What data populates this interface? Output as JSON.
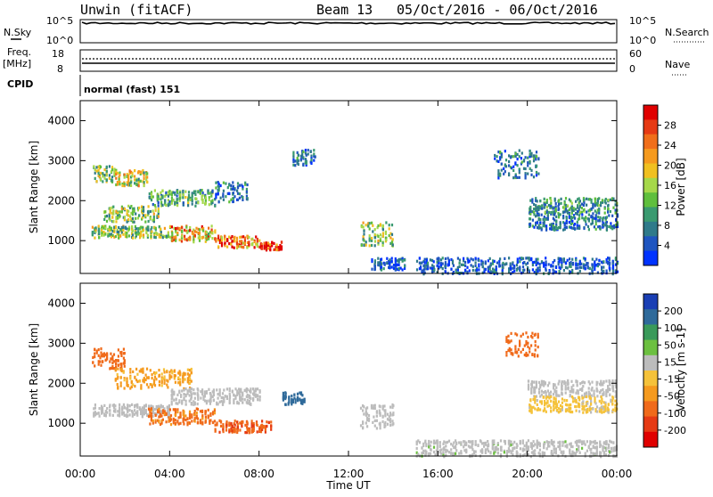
{
  "header": {
    "title": "Unwin (fitACF)",
    "beam": "Beam 13",
    "date_range": "05/Oct/2016 - 06/Oct/2016"
  },
  "top_panels": {
    "nsky": {
      "left_label": "N.Sky",
      "right_label": "N.Search",
      "left_ticks": [
        "10^5",
        "10^0"
      ],
      "right_ticks": [
        "10^5",
        "10^0"
      ]
    },
    "freq": {
      "left_label_line1": "Freq.",
      "left_label_line2": "[MHz]",
      "right_label": "Nave",
      "left_ticks": [
        "18",
        "8"
      ],
      "right_ticks": [
        "60",
        "0"
      ]
    },
    "cpid": {
      "label": "CPID",
      "text": "normal (fast) 151"
    }
  },
  "x_axis": {
    "label": "Time UT",
    "ticks": [
      "00:00",
      "04:00",
      "08:00",
      "12:00",
      "16:00",
      "20:00",
      "00:00"
    ]
  },
  "chart_data": [
    {
      "type": "heatmap",
      "ylabel": "Slant Range [km]",
      "xlabel": "Time UT",
      "xlim": [
        0,
        24
      ],
      "ylim": [
        180,
        4500
      ],
      "y_ticks": [
        1000,
        2000,
        3000,
        4000
      ],
      "colorbar": {
        "label": "Power [dB]",
        "ticks": [
          4,
          8,
          12,
          16,
          20,
          24,
          28
        ],
        "colors": [
          "#0033ff",
          "#1f55c0",
          "#2f7a8a",
          "#3a9a70",
          "#5fbf3d",
          "#a6d84a",
          "#f0c020",
          "#f59a1e",
          "#f06e1a",
          "#e63a14",
          "#e00000"
        ]
      },
      "regions": [
        {
          "t": [
            0.5,
            1.5
          ],
          "r": [
            2500,
            2900
          ],
          "level": 14
        },
        {
          "t": [
            1.5,
            3.0
          ],
          "r": [
            2400,
            2800
          ],
          "level": 16
        },
        {
          "t": [
            1.0,
            3.5
          ],
          "r": [
            1500,
            1900
          ],
          "level": 14
        },
        {
          "t": [
            3.0,
            6.0
          ],
          "r": [
            1900,
            2300
          ],
          "level": 12
        },
        {
          "t": [
            6.0,
            7.5
          ],
          "r": [
            2000,
            2500
          ],
          "level": 8
        },
        {
          "t": [
            0.5,
            4.0
          ],
          "r": [
            1100,
            1400
          ],
          "level": 14
        },
        {
          "t": [
            4.0,
            6.0
          ],
          "r": [
            1000,
            1400
          ],
          "level": 20
        },
        {
          "t": [
            6.0,
            8.0
          ],
          "r": [
            850,
            1150
          ],
          "level": 24
        },
        {
          "t": [
            8.0,
            9.0
          ],
          "r": [
            800,
            1000
          ],
          "level": 26
        },
        {
          "t": [
            9.5,
            10.5
          ],
          "r": [
            2900,
            3300
          ],
          "level": 8
        },
        {
          "t": [
            12.5,
            14.0
          ],
          "r": [
            900,
            1500
          ],
          "level": 14
        },
        {
          "t": [
            13.0,
            14.5
          ],
          "r": [
            300,
            600
          ],
          "level": 6
        },
        {
          "t": [
            15.0,
            24.0
          ],
          "r": [
            200,
            600
          ],
          "level": 6
        },
        {
          "t": [
            18.5,
            20.5
          ],
          "r": [
            2600,
            3300
          ],
          "level": 8
        },
        {
          "t": [
            20.0,
            24.0
          ],
          "r": [
            1700,
            2100
          ],
          "level": 10
        },
        {
          "t": [
            20.0,
            24.0
          ],
          "r": [
            1300,
            1700
          ],
          "level": 8
        }
      ]
    },
    {
      "type": "heatmap",
      "ylabel": "Slant Range [km]",
      "xlabel": "Time UT",
      "xlim": [
        0,
        24
      ],
      "ylim": [
        180,
        4500
      ],
      "y_ticks": [
        1000,
        2000,
        3000,
        4000
      ],
      "colorbar": {
        "label": "Velocity [m s-1]",
        "ticks": [
          200,
          100,
          50,
          15,
          -15,
          -50,
          -100,
          -200
        ],
        "colors": [
          "#1a3fb4",
          "#2f6a9a",
          "#3a9a5a",
          "#6cc040",
          "#bcbcbc",
          "#f5c23a",
          "#f59a1e",
          "#f06a1a",
          "#e63a14",
          "#e00000"
        ]
      },
      "regions": [
        {
          "t": [
            0.5,
            2.0
          ],
          "r": [
            2400,
            2900
          ],
          "level": -150
        },
        {
          "t": [
            1.5,
            5.0
          ],
          "r": [
            1900,
            2400
          ],
          "level": -60
        },
        {
          "t": [
            0.5,
            4.0
          ],
          "r": [
            1200,
            1500
          ],
          "level": 0
        },
        {
          "t": [
            4.0,
            8.0
          ],
          "r": [
            1500,
            1900
          ],
          "level": 0
        },
        {
          "t": [
            3.0,
            6.0
          ],
          "r": [
            1000,
            1400
          ],
          "level": -120
        },
        {
          "t": [
            6.0,
            8.5
          ],
          "r": [
            800,
            1100
          ],
          "level": -180
        },
        {
          "t": [
            9.0,
            10.0
          ],
          "r": [
            1500,
            1800
          ],
          "level": 150
        },
        {
          "t": [
            12.5,
            14.0
          ],
          "r": [
            900,
            1500
          ],
          "level": 0
        },
        {
          "t": [
            15.0,
            24.0
          ],
          "r": [
            200,
            600
          ],
          "level": 10
        },
        {
          "t": [
            19.0,
            20.5
          ],
          "r": [
            2700,
            3300
          ],
          "level": -150
        },
        {
          "t": [
            20.0,
            24.0
          ],
          "r": [
            1700,
            2100
          ],
          "level": 0
        },
        {
          "t": [
            20.0,
            24.0
          ],
          "r": [
            1300,
            1700
          ],
          "level": -20
        }
      ]
    }
  ]
}
